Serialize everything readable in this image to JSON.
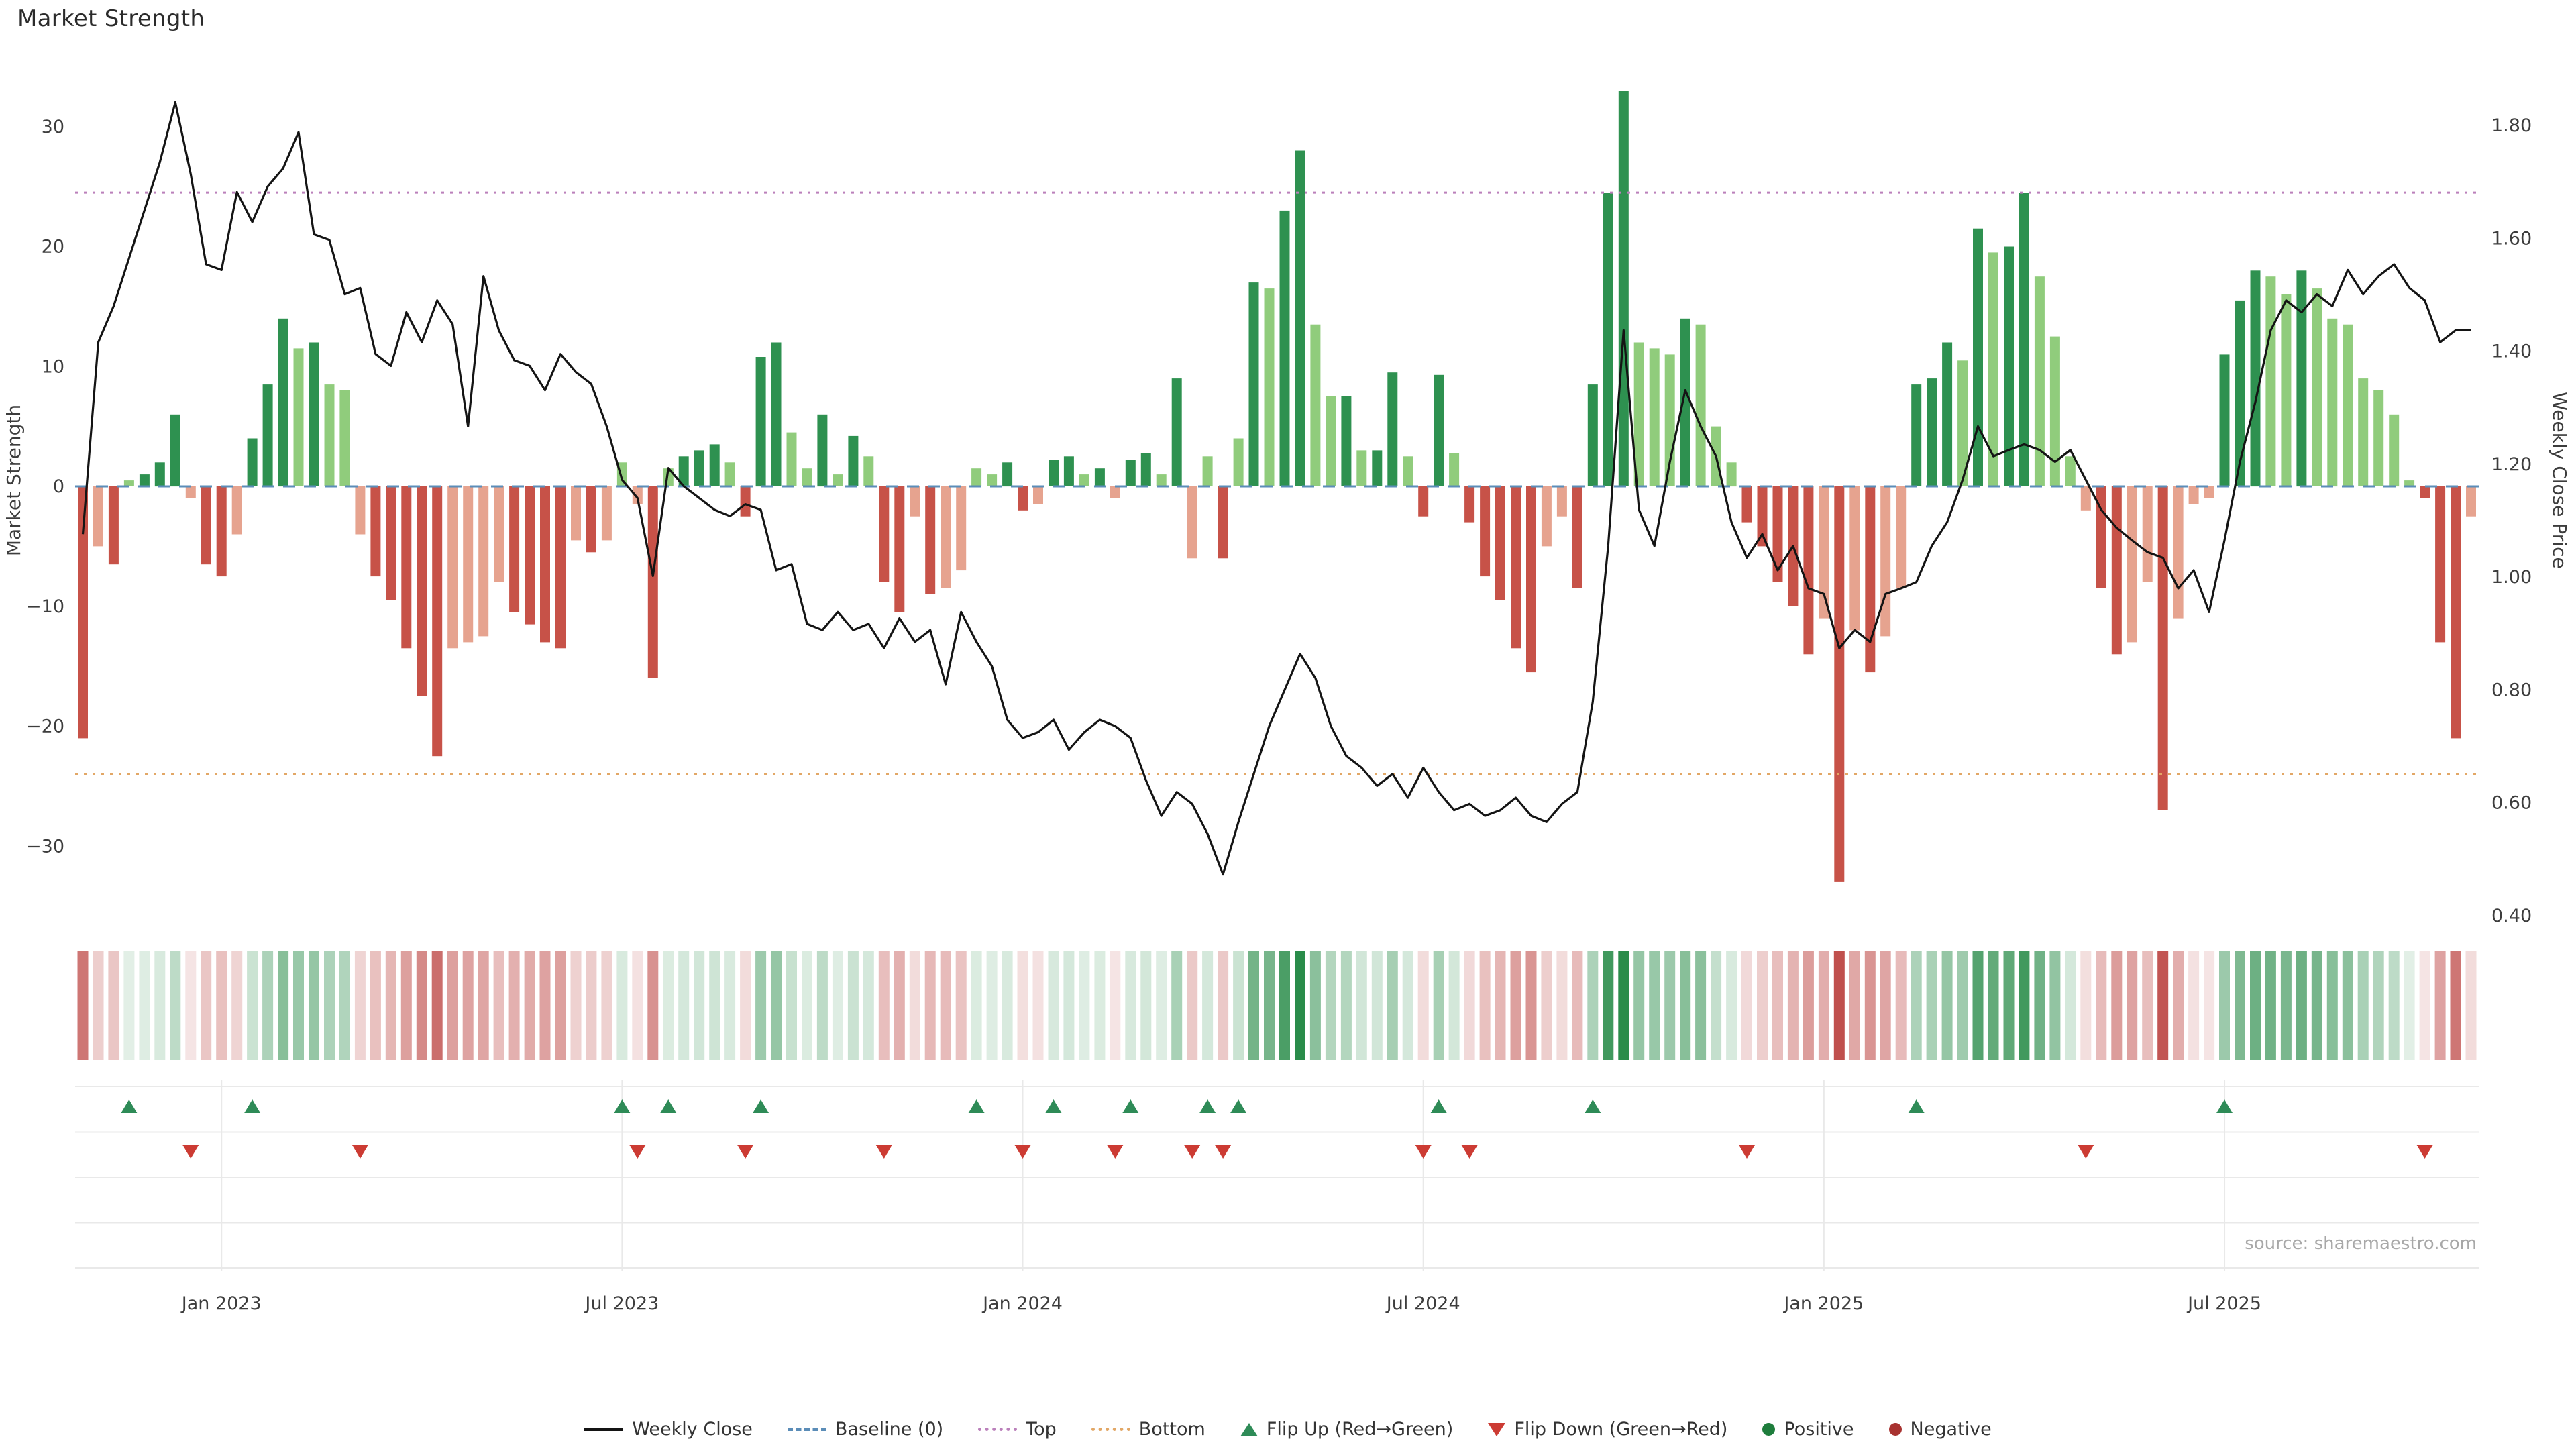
{
  "title": "Market Strength",
  "source_note": "source: sharemaestro.com",
  "chart_data": {
    "type": "bar+line",
    "title": "Market Strength",
    "left_axis": {
      "label": "Market Strength",
      "range": [
        -35,
        36
      ],
      "ticks": [
        {
          "label": "30",
          "value": 30
        },
        {
          "label": "20",
          "value": 20
        },
        {
          "label": "10",
          "value": 10
        },
        {
          "label": "0",
          "value": 0
        },
        {
          "label": "−10",
          "value": -10
        },
        {
          "label": "−20",
          "value": -20
        },
        {
          "label": "−30",
          "value": -30
        }
      ]
    },
    "right_axis": {
      "label": "Weekly Close Price",
      "range": [
        0.4,
        1.87
      ],
      "ticks": [
        {
          "label": "1.80",
          "value": 1.8
        },
        {
          "label": "1.60",
          "value": 1.6
        },
        {
          "label": "1.40",
          "value": 1.4
        },
        {
          "label": "1.20",
          "value": 1.2
        },
        {
          "label": "1.00",
          "value": 1.0
        },
        {
          "label": "0.80",
          "value": 0.8
        },
        {
          "label": "0.60",
          "value": 0.6
        },
        {
          "label": "0.40",
          "value": 0.4
        }
      ]
    },
    "x_ticks": [
      {
        "label": "Jan 2023",
        "week": 9
      },
      {
        "label": "Jul 2023",
        "week": 35
      },
      {
        "label": "Jan 2024",
        "week": 61
      },
      {
        "label": "Jul 2024",
        "week": 87
      },
      {
        "label": "Jan 2025",
        "week": 113
      },
      {
        "label": "Jul 2025",
        "week": 139
      }
    ],
    "baseline": 0,
    "top_threshold": 24.5,
    "bottom_threshold": -24,
    "strength": [
      -21,
      -5,
      -6.5,
      0.5,
      1,
      2,
      6,
      -1,
      -6.5,
      -7.5,
      -4,
      4,
      8.5,
      14,
      11.5,
      12,
      8.5,
      8,
      -4,
      -7.5,
      -9.5,
      -13.5,
      -17.5,
      -22.5,
      -13.5,
      -13,
      -12.5,
      -8,
      -10.5,
      -11.5,
      -13,
      -13.5,
      -4.5,
      -5.5,
      -4.5,
      2,
      -1.5,
      -16,
      1.5,
      2.5,
      3,
      3.5,
      2,
      -2.5,
      10.8,
      12,
      4.5,
      1.5,
      6,
      1,
      4.2,
      2.5,
      -8,
      -10.5,
      -2.5,
      -9,
      -8.5,
      -7,
      1.5,
      1,
      2,
      -2,
      -1.5,
      2.2,
      2.5,
      1,
      1.5,
      -1,
      2.2,
      2.8,
      1,
      9,
      -6,
      2.5,
      -6,
      4,
      17,
      16.5,
      23,
      28,
      13.5,
      7.5,
      7.5,
      3,
      3,
      9.5,
      2.5,
      -2.5,
      9.3,
      2.8,
      -3,
      -7.5,
      -9.5,
      -13.5,
      -15.5,
      -5,
      -2.5,
      -8.5,
      8.5,
      24.5,
      33,
      12,
      11.5,
      11,
      14,
      13.5,
      5,
      2,
      -3,
      -5,
      -8,
      -10,
      -14,
      -11,
      -33,
      -12,
      -15.5,
      -12.5,
      -8.5,
      8.5,
      9,
      12,
      10.5,
      21.5,
      19.5,
      20,
      24.5,
      17.5,
      12.5,
      2.5,
      -2,
      -8.5,
      -14,
      -13,
      -8,
      -27,
      -11,
      -1.5,
      -1,
      11,
      15.5,
      18,
      17.5,
      16,
      18,
      16.5,
      14,
      13.5,
      9,
      8,
      6,
      0.5,
      -1,
      -13,
      -21,
      -2.5
    ],
    "price": [
      1.076,
      1.416,
      1.48,
      1.565,
      1.65,
      1.735,
      1.841,
      1.714,
      1.554,
      1.544,
      1.682,
      1.629,
      1.692,
      1.724,
      1.788,
      1.607,
      1.597,
      1.501,
      1.512,
      1.395,
      1.374,
      1.469,
      1.416,
      1.49,
      1.448,
      1.267,
      1.533,
      1.437,
      1.384,
      1.374,
      1.331,
      1.395,
      1.363,
      1.342,
      1.267,
      1.172,
      1.14,
      1.002,
      1.193,
      1.161,
      1.14,
      1.119,
      1.108,
      1.129,
      1.119,
      1.012,
      1.023,
      0.917,
      0.906,
      0.938,
      0.906,
      0.917,
      0.874,
      0.927,
      0.885,
      0.906,
      0.81,
      0.938,
      0.885,
      0.842,
      0.747,
      0.715,
      0.725,
      0.747,
      0.694,
      0.725,
      0.747,
      0.736,
      0.715,
      0.64,
      0.577,
      0.619,
      0.598,
      0.545,
      0.473,
      0.566,
      0.651,
      0.736,
      0.8,
      0.864,
      0.821,
      0.736,
      0.683,
      0.662,
      0.63,
      0.651,
      0.609,
      0.662,
      0.619,
      0.587,
      0.598,
      0.577,
      0.587,
      0.609,
      0.577,
      0.566,
      0.598,
      0.619,
      0.779,
      1.055,
      1.437,
      1.119,
      1.055,
      1.204,
      1.331,
      1.267,
      1.214,
      1.097,
      1.034,
      1.076,
      1.012,
      1.055,
      0.98,
      0.97,
      0.874,
      0.906,
      0.885,
      0.97,
      0.98,
      0.991,
      1.055,
      1.097,
      1.172,
      1.267,
      1.214,
      1.225,
      1.235,
      1.225,
      1.204,
      1.225,
      1.172,
      1.119,
      1.087,
      1.065,
      1.044,
      1.034,
      0.98,
      1.012,
      0.938,
      1.065,
      1.204,
      1.31,
      1.437,
      1.49,
      1.469,
      1.501,
      1.48,
      1.544,
      1.501,
      1.533,
      1.554,
      1.512,
      1.49,
      1.416,
      1.437,
      1.437
    ]
  },
  "legend": [
    {
      "label": "Weekly Close",
      "type": "line",
      "icon": "weekly-close-line-icon",
      "color": "#141414"
    },
    {
      "label": "Baseline (0)",
      "type": "dashed",
      "icon": "baseline-dash-icon",
      "color": "#5b8db8"
    },
    {
      "label": "Top",
      "type": "dotted",
      "icon": "top-threshold-icon",
      "color": "#bb80bb"
    },
    {
      "label": "Bottom",
      "type": "dotted",
      "icon": "bottom-threshold-icon",
      "color": "#e2a766"
    },
    {
      "label": "Flip Up (Red→Green)",
      "type": "triangle-up",
      "icon": "flip-up-icon",
      "color": "#2e8b57"
    },
    {
      "label": "Flip Down (Green→Red)",
      "type": "triangle-down",
      "icon": "flip-down-icon",
      "color": "#cc3b33"
    },
    {
      "label": "Positive",
      "type": "dot",
      "icon": "positive-dot-icon",
      "color": "#1e7d3c"
    },
    {
      "label": "Negative",
      "type": "dot",
      "icon": "negative-dot-icon",
      "color": "#a83230"
    }
  ],
  "colors": {
    "positive_dark": "#2e9150",
    "positive_light": "#90cc7c",
    "negative_dark": "#c75248",
    "negative_light": "#e6a38f",
    "price_line": "#141414",
    "baseline": "#5b8db8",
    "top_line": "#bb80bb",
    "bottom_line": "#e2a766",
    "flip_up": "#2e8b57",
    "flip_down": "#cc3b33",
    "heat_pos": "#2a8c4a",
    "heat_neg": "#c0504d",
    "grid": "#e9e9e9",
    "tick_text": "#3d3d3d",
    "source_text": "#a8a8a8"
  }
}
